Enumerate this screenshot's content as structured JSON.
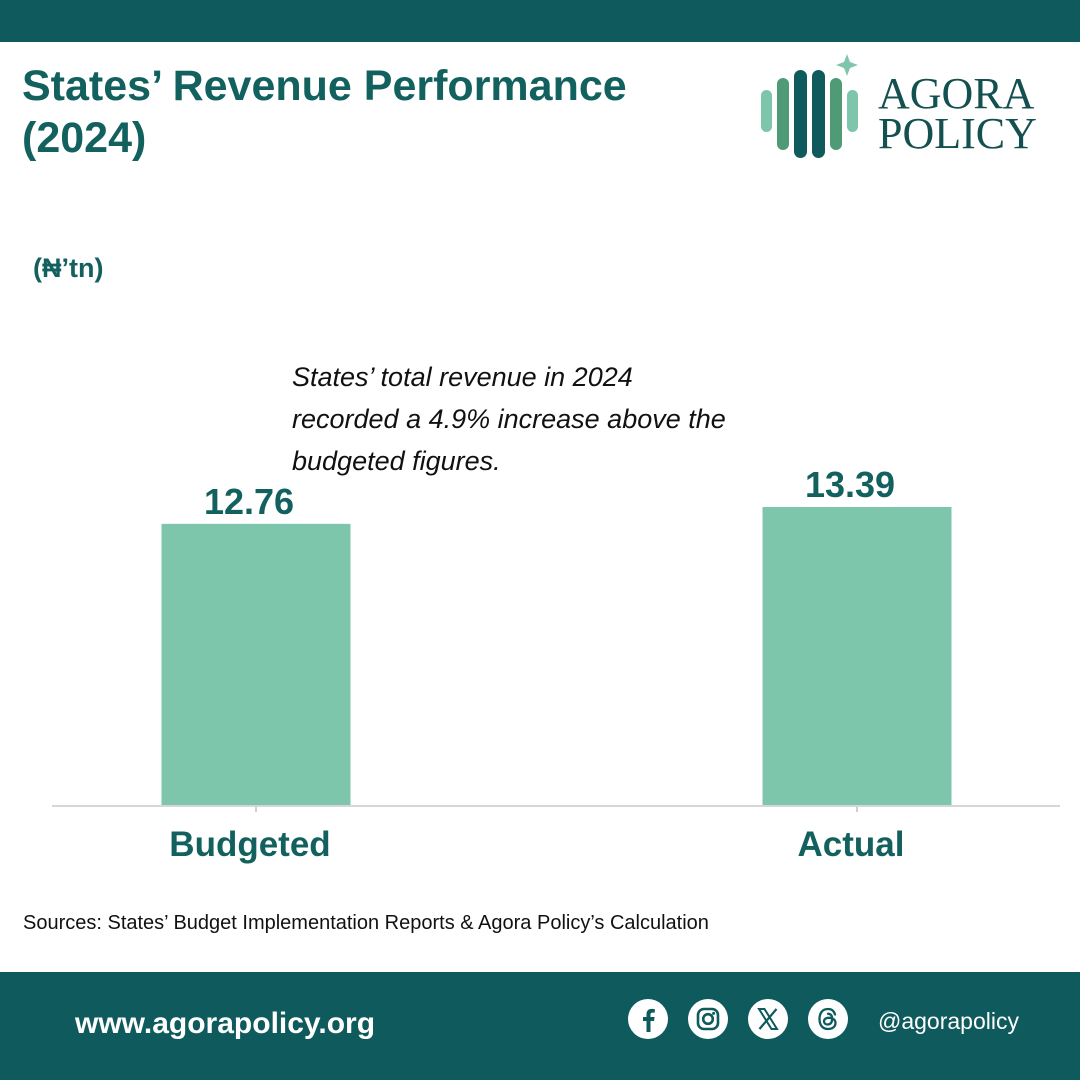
{
  "header": {
    "title_line1": "States’ Revenue Performance",
    "title_line2": "(2024)"
  },
  "logo": {
    "line1": "AGORA",
    "line2": "POLICY"
  },
  "unit_label": "(₦’tn)",
  "annotation": {
    "line1": "States’ total revenue in 2024",
    "line2": "recorded a 4.9% increase above the",
    "line3": "budgeted figures."
  },
  "chart_data": {
    "type": "bar",
    "title": "States’ Revenue Performance (2024)",
    "ylabel": "(₦’tn)",
    "xlabel": "",
    "categories": [
      "Budgeted",
      "Actual"
    ],
    "values": [
      12.76,
      13.39
    ],
    "data_labels": [
      "12.76",
      "13.39"
    ],
    "ylim": [
      0,
      14.5
    ],
    "grid": false,
    "bar_color": "#7ec6ab",
    "label_color": "#13615f"
  },
  "sources": "Sources: States’ Budget Implementation Reports & Agora Policy’s Calculation",
  "footer": {
    "website": "www.agorapolicy.org",
    "handle": "@agorapolicy",
    "social_icons": [
      "facebook-icon",
      "instagram-icon",
      "x-icon",
      "threads-icon"
    ]
  },
  "colors": {
    "brand_dark": "#0e5a5c",
    "brand_text": "#13615f",
    "bar": "#7ec6ab"
  }
}
